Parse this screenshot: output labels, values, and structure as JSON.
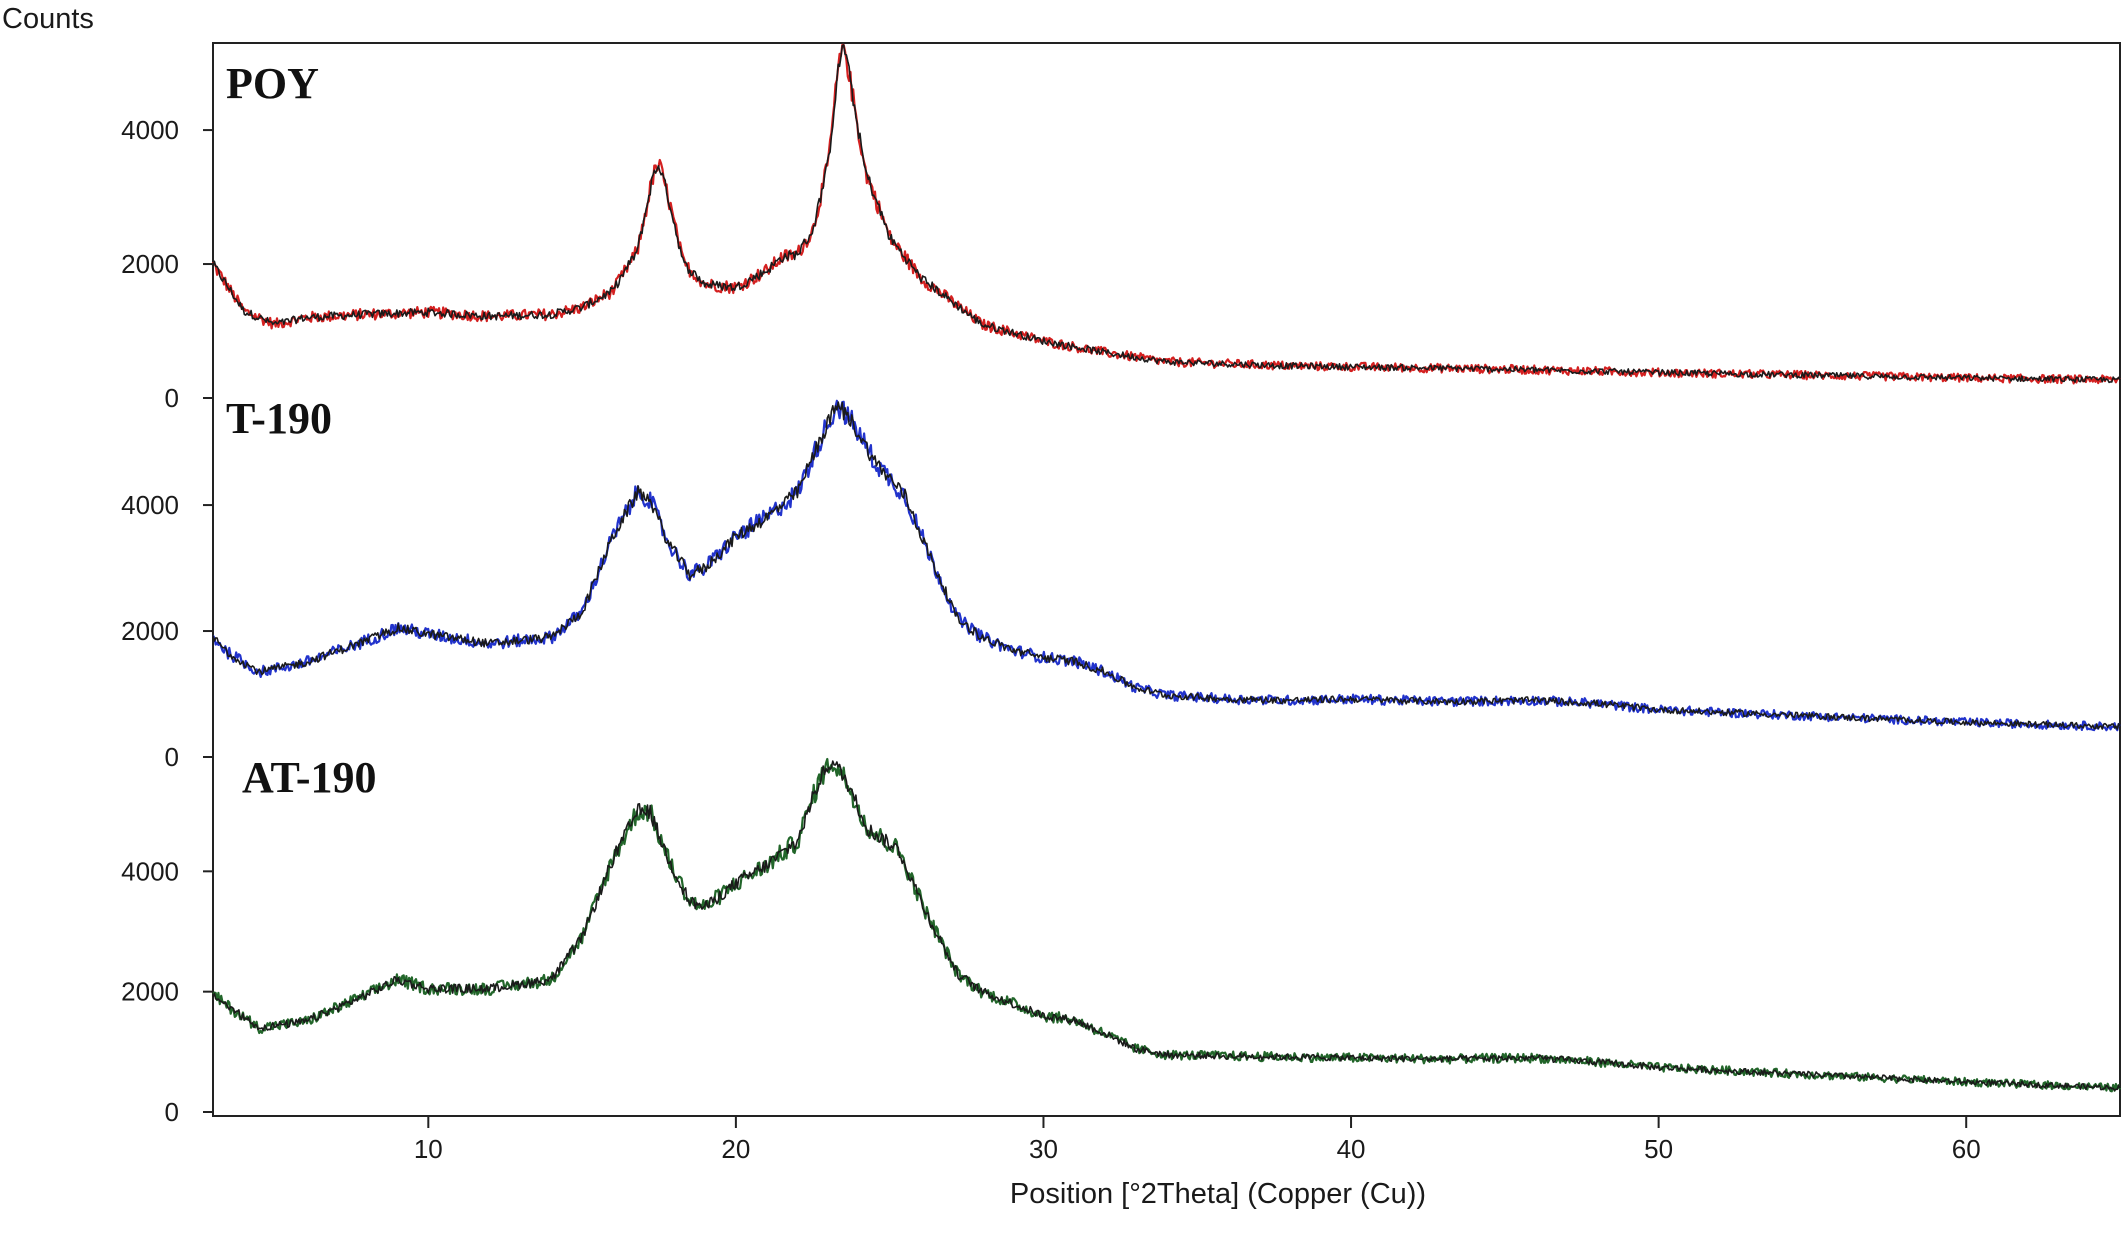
{
  "chart_data": {
    "type": "line",
    "ylabel": "Counts",
    "xlabel": "Position [°2Theta] (Copper (Cu))",
    "xlim": [
      3,
      65
    ],
    "x_ticks": [
      10,
      20,
      30,
      40,
      50,
      60
    ],
    "grid": false,
    "panels": [
      {
        "label": "POY",
        "color": "#d42020",
        "ylim": [
          0,
          5300
        ],
        "y_ticks": [
          0,
          2000,
          4000
        ],
        "points": [
          [
            3,
            2000
          ],
          [
            3.5,
            1650
          ],
          [
            4,
            1300
          ],
          [
            5,
            1100
          ],
          [
            6,
            1200
          ],
          [
            8,
            1250
          ],
          [
            10,
            1280
          ],
          [
            12,
            1220
          ],
          [
            14,
            1250
          ],
          [
            15,
            1350
          ],
          [
            16,
            1600
          ],
          [
            16.8,
            2200
          ],
          [
            17.3,
            3300
          ],
          [
            17.5,
            3500
          ],
          [
            17.8,
            3000
          ],
          [
            18.3,
            2000
          ],
          [
            19,
            1700
          ],
          [
            20,
            1650
          ],
          [
            21,
            1900
          ],
          [
            21.5,
            2100
          ],
          [
            22,
            2150
          ],
          [
            22.5,
            2500
          ],
          [
            23,
            3500
          ],
          [
            23.3,
            4800
          ],
          [
            23.5,
            5350
          ],
          [
            23.8,
            4500
          ],
          [
            24.2,
            3400
          ],
          [
            25,
            2400
          ],
          [
            26,
            1800
          ],
          [
            28,
            1100
          ],
          [
            30,
            850
          ],
          [
            32,
            680
          ],
          [
            34,
            540
          ],
          [
            38,
            480
          ],
          [
            45,
            430
          ],
          [
            50,
            380
          ],
          [
            55,
            340
          ],
          [
            60,
            300
          ],
          [
            65,
            270
          ]
        ],
        "y_tick_labels": [
          "0",
          "2000",
          "4000"
        ]
      },
      {
        "label": "T-190",
        "color": "#2233cc",
        "ylim": [
          0,
          5700
        ],
        "y_ticks": [
          0,
          2000,
          4000
        ],
        "points": [
          [
            3,
            1900
          ],
          [
            3.5,
            1650
          ],
          [
            4.5,
            1350
          ],
          [
            6,
            1500
          ],
          [
            8,
            1850
          ],
          [
            9,
            2050
          ],
          [
            10,
            1950
          ],
          [
            12,
            1800
          ],
          [
            14,
            1900
          ],
          [
            15,
            2300
          ],
          [
            16,
            3500
          ],
          [
            16.8,
            4200
          ],
          [
            17.2,
            4100
          ],
          [
            17.8,
            3400
          ],
          [
            18.5,
            2900
          ],
          [
            19,
            3000
          ],
          [
            20,
            3500
          ],
          [
            21,
            3800
          ],
          [
            22,
            4200
          ],
          [
            22.8,
            5100
          ],
          [
            23.3,
            5600
          ],
          [
            23.8,
            5300
          ],
          [
            24.5,
            4700
          ],
          [
            25.5,
            4150
          ],
          [
            26.3,
            3200
          ],
          [
            27.2,
            2200
          ],
          [
            28,
            1900
          ],
          [
            29,
            1700
          ],
          [
            30,
            1580
          ],
          [
            31,
            1520
          ],
          [
            32,
            1350
          ],
          [
            33,
            1100
          ],
          [
            34,
            980
          ],
          [
            36,
            920
          ],
          [
            38,
            900
          ],
          [
            40,
            920
          ],
          [
            43,
            880
          ],
          [
            46,
            900
          ],
          [
            48,
            850
          ],
          [
            50,
            750
          ],
          [
            55,
            650
          ],
          [
            60,
            550
          ],
          [
            65,
            480
          ]
        ],
        "y_tick_labels": [
          "0",
          "2000",
          "4000"
        ]
      },
      {
        "label": "AT-190",
        "color": "#22662a",
        "ylim": [
          0,
          5900
        ],
        "y_ticks": [
          0,
          2000,
          4000
        ],
        "points": [
          [
            3,
            1950
          ],
          [
            3.5,
            1750
          ],
          [
            4.5,
            1400
          ],
          [
            6,
            1500
          ],
          [
            8,
            1950
          ],
          [
            9,
            2200
          ],
          [
            10,
            2050
          ],
          [
            12,
            2050
          ],
          [
            14,
            2200
          ],
          [
            15,
            2900
          ],
          [
            16,
            4200
          ],
          [
            16.8,
            5000
          ],
          [
            17.2,
            5000
          ],
          [
            17.8,
            4200
          ],
          [
            18.5,
            3500
          ],
          [
            19,
            3400
          ],
          [
            20,
            3800
          ],
          [
            21,
            4100
          ],
          [
            22,
            4500
          ],
          [
            22.7,
            5500
          ],
          [
            23.1,
            5850
          ],
          [
            23.6,
            5500
          ],
          [
            24.3,
            4700
          ],
          [
            25.3,
            4350
          ],
          [
            26.2,
            3300
          ],
          [
            27.2,
            2300
          ],
          [
            28,
            2000
          ],
          [
            29,
            1800
          ],
          [
            30,
            1600
          ],
          [
            31,
            1530
          ],
          [
            32,
            1300
          ],
          [
            33,
            1050
          ],
          [
            34,
            950
          ],
          [
            36,
            930
          ],
          [
            40,
            900
          ],
          [
            43,
            880
          ],
          [
            46,
            900
          ],
          [
            48,
            830
          ],
          [
            50,
            740
          ],
          [
            55,
            620
          ],
          [
            60,
            500
          ],
          [
            65,
            400
          ]
        ],
        "y_tick_labels": [
          "0",
          "2000",
          "4000"
        ]
      }
    ]
  }
}
